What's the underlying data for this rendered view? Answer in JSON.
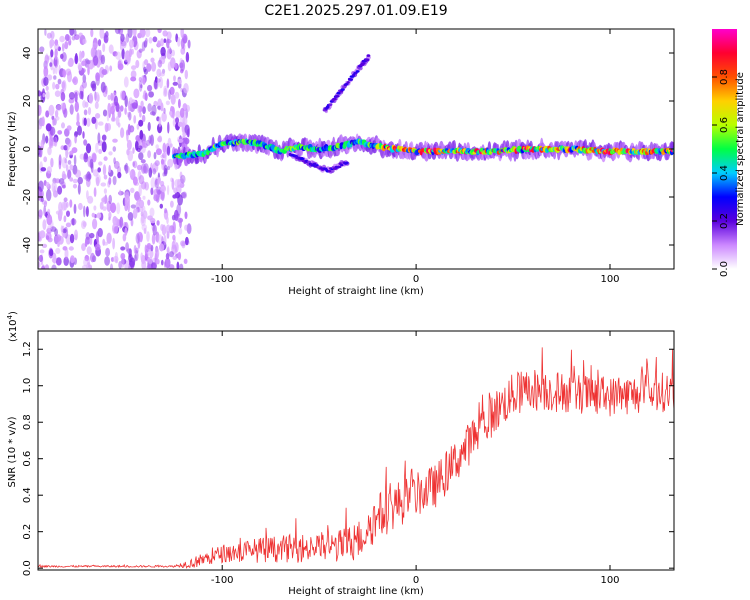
{
  "title": "C2E1.2025.297.01.09.E19",
  "chart_data": [
    {
      "type": "heatmap",
      "xlabel": "Height of straight line (km)",
      "ylabel": "Frequency (Hz)",
      "xlim": [
        -195,
        133
      ],
      "ylim": [
        -50,
        50
      ],
      "x_ticks": [
        -100,
        0,
        100
      ],
      "y_ticks": [
        -40,
        -20,
        0,
        20,
        40
      ],
      "colorbar": {
        "label": "Normalized spectral amplitude",
        "range": [
          0,
          1
        ],
        "ticks": [
          0.0,
          0.2,
          0.4,
          0.6,
          0.8
        ],
        "stops": [
          "#ffffff",
          "#cc88ff",
          "#5a00dd",
          "#0000ff",
          "#00ccff",
          "#00ff44",
          "#b8ff00",
          "#ffd000",
          "#ff5000",
          "#ff0030",
          "#ff00cc"
        ]
      },
      "noise_region_x": [
        -195,
        -117
      ],
      "tracks": [
        {
          "name": "main",
          "x": [
            -125,
            -110,
            -100,
            -90,
            -80,
            -70,
            -60,
            -50,
            -40,
            -30,
            -20,
            -10,
            0,
            20,
            40,
            60,
            80,
            100,
            120,
            133
          ],
          "y": [
            -3,
            -2,
            2,
            3,
            2,
            -1,
            1,
            0,
            1,
            3,
            1,
            0,
            -1,
            -1,
            -1,
            0,
            0,
            -1,
            -1,
            -1
          ]
        },
        {
          "name": "rising",
          "x": [
            -47,
            -40,
            -32,
            -24
          ],
          "y": [
            16,
            23,
            31,
            39
          ]
        },
        {
          "name": "descending",
          "x": [
            -65,
            -55,
            -45,
            -35
          ],
          "y": [
            -2,
            -6,
            -9,
            -5
          ]
        }
      ]
    },
    {
      "type": "line",
      "xlabel": "Height of straight line (km)",
      "ylabel": "SNR (10 * v/v)",
      "multiplier_label": "(x10",
      "multiplier_exp": "4",
      "xlim": [
        -195,
        133
      ],
      "ylim": [
        -0.01,
        1.3
      ],
      "x_ticks": [
        -100,
        0,
        100
      ],
      "y_ticks": [
        0.0,
        0.2,
        0.4,
        0.6,
        0.8,
        1.0,
        1.2
      ],
      "series": [
        {
          "name": "SNR",
          "color": "#ee3333",
          "x": [
            -195,
            -150,
            -125,
            -115,
            -100,
            -80,
            -60,
            -40,
            -30,
            -20,
            -10,
            0,
            10,
            20,
            30,
            40,
            50,
            60,
            80,
            100,
            120,
            133
          ],
          "y": [
            0.01,
            0.01,
            0.01,
            0.03,
            0.08,
            0.1,
            0.11,
            0.12,
            0.15,
            0.28,
            0.35,
            0.4,
            0.45,
            0.58,
            0.72,
            0.85,
            0.95,
            0.98,
            0.96,
            0.94,
            0.96,
            0.97
          ],
          "noise": [
            0.005,
            0.005,
            0.005,
            0.03,
            0.05,
            0.07,
            0.08,
            0.09,
            0.11,
            0.13,
            0.13,
            0.12,
            0.12,
            0.12,
            0.12,
            0.12,
            0.12,
            0.12,
            0.11,
            0.11,
            0.11,
            0.11
          ]
        }
      ]
    }
  ]
}
